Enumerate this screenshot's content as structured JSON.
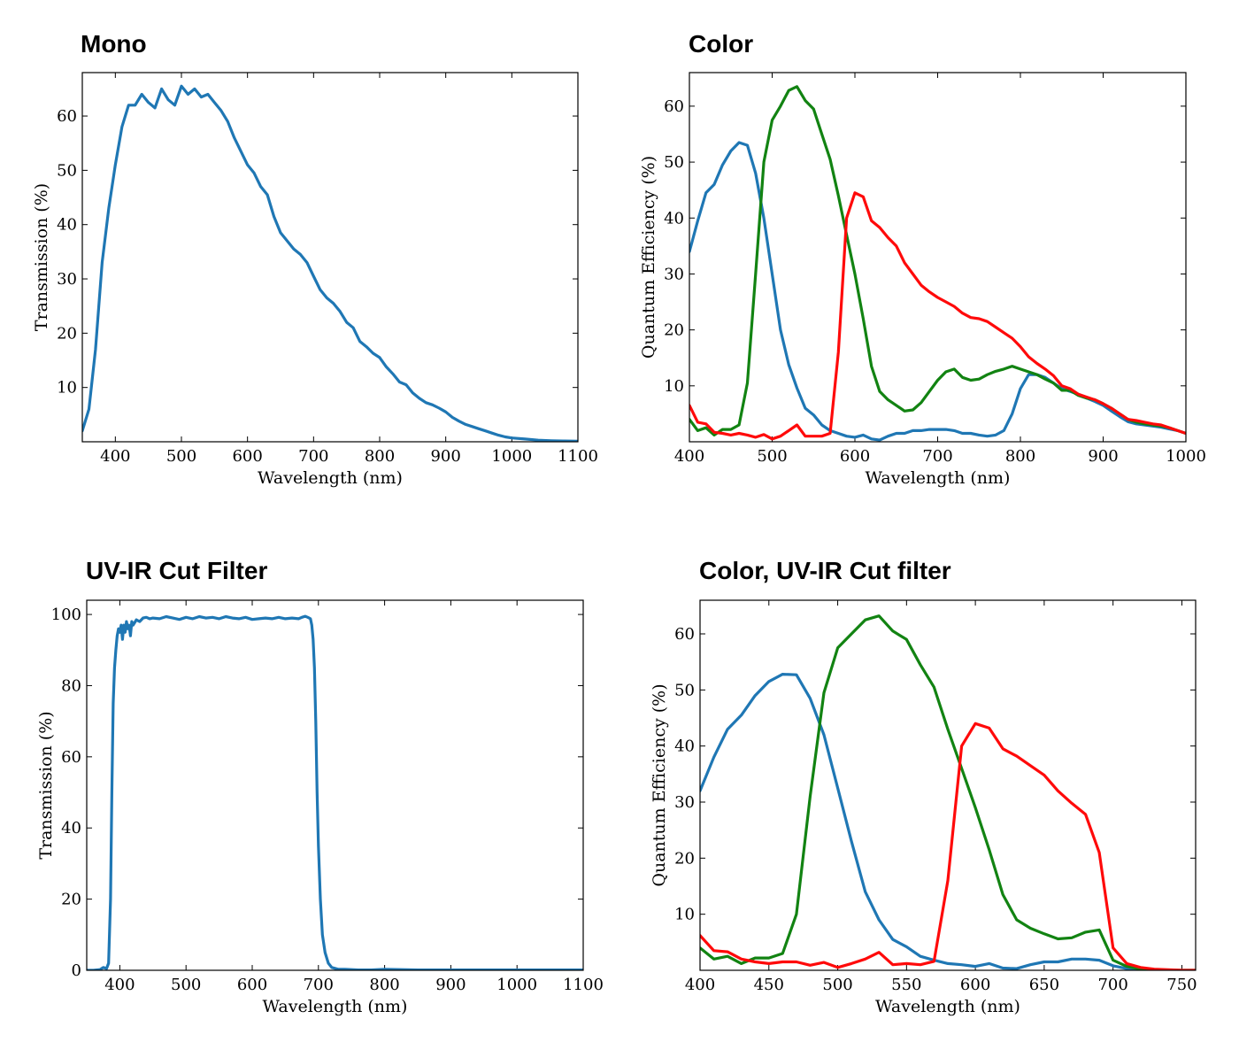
{
  "colors": {
    "blue": "#1f77b4",
    "green": "#128312",
    "red": "#ff0a0a"
  },
  "chart_data": [
    {
      "type": "line",
      "title": "Mono",
      "xlabel": "Wavelength (nm)",
      "ylabel": "Transmission (%)",
      "xlim": [
        350,
        1100
      ],
      "ylim": [
        0,
        68
      ],
      "xticks": [
        400,
        500,
        600,
        700,
        800,
        900,
        1000,
        1100
      ],
      "yticks": [
        10,
        20,
        30,
        40,
        50,
        60
      ],
      "grid": false,
      "series": [
        {
          "name": "Mono",
          "color": "blue",
          "x": [
            350,
            360,
            370,
            380,
            390,
            400,
            410,
            420,
            430,
            440,
            450,
            460,
            470,
            480,
            490,
            500,
            510,
            520,
            530,
            540,
            550,
            560,
            570,
            580,
            590,
            600,
            610,
            620,
            630,
            640,
            650,
            660,
            670,
            680,
            690,
            700,
            710,
            720,
            730,
            740,
            750,
            760,
            770,
            780,
            790,
            800,
            810,
            820,
            830,
            840,
            850,
            860,
            870,
            880,
            890,
            900,
            910,
            920,
            930,
            940,
            950,
            960,
            970,
            980,
            990,
            1000,
            1020,
            1040,
            1060,
            1080,
            1100
          ],
          "y": [
            2,
            6,
            17,
            33,
            43,
            51,
            58,
            62,
            62,
            64,
            62.5,
            61.5,
            65,
            63,
            62,
            65.5,
            64,
            65,
            63.5,
            64,
            62.5,
            61,
            59,
            56,
            53.5,
            51,
            49.5,
            47,
            45.5,
            41.5,
            38.5,
            37,
            35.5,
            34.5,
            33,
            30.5,
            28,
            26.5,
            25.5,
            24,
            22,
            21,
            18.5,
            17.5,
            16.3,
            15.5,
            13.8,
            12.5,
            11,
            10.5,
            9,
            8,
            7.2,
            6.8,
            6.2,
            5.5,
            4.5,
            3.8,
            3.2,
            2.8,
            2.4,
            2,
            1.6,
            1.2,
            0.9,
            0.7,
            0.5,
            0.3,
            0.2,
            0.15,
            0.1
          ]
        }
      ]
    },
    {
      "type": "line",
      "title": "Color",
      "xlabel": "Wavelength (nm)",
      "ylabel": "Quantum Efficiency (%)",
      "xlim": [
        400,
        1000
      ],
      "ylim": [
        0,
        66
      ],
      "xticks": [
        400,
        500,
        600,
        700,
        800,
        900,
        1000
      ],
      "yticks": [
        10,
        20,
        30,
        40,
        50,
        60
      ],
      "grid": false,
      "series": [
        {
          "name": "Blue",
          "color": "blue",
          "x": [
            400,
            410,
            420,
            430,
            440,
            450,
            460,
            470,
            480,
            490,
            500,
            510,
            520,
            530,
            540,
            550,
            560,
            570,
            580,
            590,
            600,
            610,
            620,
            630,
            640,
            650,
            660,
            670,
            680,
            690,
            700,
            710,
            720,
            730,
            740,
            750,
            760,
            770,
            780,
            790,
            800,
            810,
            820,
            830,
            840,
            850,
            860,
            870,
            880,
            890,
            900,
            910,
            920,
            930,
            940,
            950,
            960,
            970,
            980,
            990,
            1000
          ],
          "y": [
            34,
            39.5,
            44.5,
            46,
            49.5,
            52,
            53.5,
            53,
            48,
            40,
            30,
            20,
            13.8,
            9.6,
            6,
            4.8,
            3,
            2,
            1.5,
            1,
            0.8,
            1.2,
            0.5,
            0.3,
            1,
            1.5,
            1.5,
            2,
            2,
            2.2,
            2.2,
            2.2,
            2,
            1.5,
            1.5,
            1.2,
            1,
            1.2,
            2,
            5,
            9.5,
            12,
            12,
            11.5,
            10.5,
            9.5,
            9,
            8.5,
            7.8,
            7.2,
            6.5,
            5.5,
            4.5,
            3.6,
            3.2,
            3,
            2.8,
            2.6,
            2.3,
            2,
            1.5
          ]
        },
        {
          "name": "Green",
          "color": "green",
          "x": [
            400,
            410,
            420,
            430,
            440,
            450,
            460,
            470,
            480,
            490,
            500,
            510,
            520,
            530,
            540,
            550,
            560,
            570,
            580,
            590,
            600,
            610,
            620,
            630,
            640,
            650,
            660,
            670,
            680,
            690,
            700,
            710,
            720,
            730,
            740,
            750,
            760,
            770,
            780,
            790,
            800,
            810,
            820,
            830,
            840,
            850,
            860,
            870,
            880,
            890,
            900,
            910,
            920,
            930,
            940,
            950,
            960,
            970,
            980,
            990,
            1000
          ],
          "y": [
            4,
            2,
            2.5,
            1.2,
            2.2,
            2.2,
            3,
            10.5,
            30,
            50,
            57.5,
            60,
            62.8,
            63.5,
            61,
            59.5,
            55,
            50.5,
            44,
            37,
            30,
            22,
            13.5,
            9,
            7.5,
            6.5,
            5.5,
            5.7,
            7,
            9,
            11,
            12.5,
            13,
            11.5,
            11,
            11.2,
            12,
            12.6,
            13,
            13.5,
            13,
            12.5,
            12,
            11.2,
            10.5,
            9.2,
            9.2,
            8.3,
            7.8,
            7.5,
            6.8,
            6,
            5,
            4,
            3.5,
            3.2,
            3,
            2.8,
            2.5,
            2,
            1.5
          ]
        },
        {
          "name": "Red",
          "color": "red",
          "x": [
            400,
            410,
            420,
            430,
            440,
            450,
            460,
            470,
            480,
            490,
            500,
            510,
            520,
            530,
            540,
            550,
            560,
            570,
            580,
            590,
            600,
            610,
            620,
            630,
            640,
            650,
            660,
            670,
            680,
            690,
            700,
            710,
            720,
            730,
            740,
            750,
            760,
            770,
            780,
            790,
            800,
            810,
            820,
            830,
            840,
            850,
            860,
            870,
            880,
            890,
            900,
            910,
            920,
            930,
            940,
            950,
            960,
            970,
            980,
            990,
            1000
          ],
          "y": [
            6.5,
            3.5,
            3.2,
            1.7,
            1.5,
            1.2,
            1.5,
            1.2,
            0.8,
            1.3,
            0.5,
            1,
            2,
            3,
            1,
            1,
            1,
            1.5,
            16,
            40,
            44.5,
            43.8,
            39.5,
            38.3,
            36.5,
            35,
            32,
            30,
            28,
            26.8,
            25.8,
            25,
            24.2,
            23,
            22.2,
            22,
            21.5,
            20.5,
            19.5,
            18.5,
            17,
            15.2,
            14,
            13,
            11.8,
            10,
            9.5,
            8.5,
            8,
            7.5,
            6.8,
            6,
            5,
            4,
            3.8,
            3.5,
            3.2,
            3,
            2.5,
            2,
            1.5
          ]
        }
      ]
    },
    {
      "type": "line",
      "title": "UV-IR Cut Filter",
      "xlabel": "Wavelength (nm)",
      "ylabel": "Transmission (%)",
      "xlim": [
        350,
        1100
      ],
      "ylim": [
        0,
        104
      ],
      "xticks": [
        400,
        500,
        600,
        700,
        800,
        900,
        1000,
        1100
      ],
      "yticks": [
        0,
        20,
        40,
        60,
        80,
        100
      ],
      "grid": false,
      "series": [
        {
          "name": "UV-IR Cut",
          "color": "blue",
          "x": [
            350,
            360,
            370,
            375,
            380,
            383,
            386,
            388,
            390,
            392,
            394,
            396,
            398,
            400,
            402,
            404,
            406,
            408,
            410,
            412,
            414,
            416,
            418,
            420,
            425,
            430,
            435,
            440,
            445,
            450,
            460,
            470,
            480,
            490,
            500,
            510,
            520,
            530,
            540,
            550,
            560,
            570,
            580,
            590,
            600,
            610,
            620,
            630,
            640,
            650,
            660,
            670,
            675,
            680,
            684,
            688,
            690,
            692,
            694,
            696,
            698,
            700,
            703,
            706,
            710,
            715,
            720,
            730,
            740,
            750,
            760,
            780,
            800,
            850,
            900,
            950,
            1000,
            1050,
            1100
          ],
          "y": [
            0,
            0,
            0.2,
            0.8,
            0.5,
            2,
            20,
            50,
            75,
            85,
            90,
            94,
            96,
            95,
            97,
            93,
            97,
            95,
            98,
            96,
            97,
            94,
            98,
            97,
            98.5,
            98,
            99,
            99.2,
            98.8,
            99,
            98.8,
            99.4,
            99,
            98.6,
            99.2,
            98.8,
            99.4,
            99,
            99.2,
            98.8,
            99.4,
            99,
            98.8,
            99.2,
            98.6,
            98.8,
            99,
            98.8,
            99.2,
            98.8,
            99,
            98.8,
            99.2,
            99.5,
            99.2,
            98.8,
            97,
            93,
            85,
            70,
            50,
            35,
            20,
            10,
            5,
            2,
            0.8,
            0.3,
            0.3,
            0.2,
            0.1,
            0.1,
            0.3,
            0.1,
            0.1,
            0.1,
            0.1,
            0.1,
            0.1
          ]
        }
      ]
    },
    {
      "type": "line",
      "title": "Color, UV-IR Cut filter",
      "xlabel": "Wavelength (nm)",
      "ylabel": "Quantum Efficiency (%)",
      "xlim": [
        400,
        760
      ],
      "ylim": [
        0,
        66
      ],
      "xticks": [
        400,
        450,
        500,
        550,
        600,
        650,
        700,
        750
      ],
      "yticks": [
        10,
        20,
        30,
        40,
        50,
        60
      ],
      "grid": false,
      "series": [
        {
          "name": "Blue",
          "color": "blue",
          "x": [
            400,
            410,
            420,
            430,
            440,
            450,
            460,
            470,
            480,
            490,
            500,
            510,
            520,
            530,
            540,
            550,
            560,
            570,
            580,
            590,
            600,
            610,
            620,
            630,
            640,
            650,
            660,
            670,
            680,
            690,
            700,
            710,
            720,
            730,
            740,
            750,
            760
          ],
          "y": [
            32,
            38,
            43,
            45.5,
            49,
            51.5,
            52.8,
            52.7,
            48.5,
            42,
            32.5,
            23,
            14,
            9,
            5.5,
            4.2,
            2.5,
            1.8,
            1.2,
            1,
            0.7,
            1.2,
            0.4,
            0.3,
            1,
            1.5,
            1.5,
            2,
            2,
            1.8,
            0.8,
            0.3,
            0.1,
            0,
            0,
            0,
            0
          ]
        },
        {
          "name": "Green",
          "color": "green",
          "x": [
            400,
            410,
            420,
            430,
            440,
            450,
            460,
            470,
            480,
            490,
            500,
            510,
            520,
            530,
            540,
            550,
            560,
            570,
            580,
            590,
            600,
            610,
            620,
            630,
            640,
            650,
            660,
            670,
            680,
            690,
            700,
            710,
            720,
            730,
            740,
            750,
            760
          ],
          "y": [
            4,
            2,
            2.5,
            1.2,
            2.2,
            2.2,
            3,
            10,
            31,
            49.5,
            57.5,
            60,
            62.5,
            63.2,
            60.5,
            59,
            54.5,
            50.5,
            43,
            36,
            29,
            21.5,
            13.5,
            9,
            7.5,
            6.5,
            5.6,
            5.8,
            6.8,
            7.2,
            1.8,
            0.7,
            0.2,
            0,
            0,
            0,
            0
          ]
        },
        {
          "name": "Red",
          "color": "red",
          "x": [
            400,
            410,
            420,
            430,
            440,
            450,
            460,
            470,
            480,
            490,
            500,
            510,
            520,
            530,
            540,
            550,
            560,
            570,
            580,
            590,
            600,
            610,
            620,
            630,
            640,
            650,
            660,
            670,
            680,
            690,
            700,
            710,
            720,
            730,
            740,
            750,
            760
          ],
          "y": [
            6.2,
            3.5,
            3.3,
            2,
            1.5,
            1.2,
            1.5,
            1.5,
            0.9,
            1.4,
            0.5,
            1.2,
            2,
            3.2,
            1,
            1.2,
            1,
            1.6,
            16,
            40,
            44,
            43.2,
            39.5,
            38.2,
            36.5,
            34.8,
            32,
            29.8,
            27.8,
            21,
            4,
            1.2,
            0.5,
            0.2,
            0.1,
            0,
            0
          ]
        }
      ]
    }
  ]
}
